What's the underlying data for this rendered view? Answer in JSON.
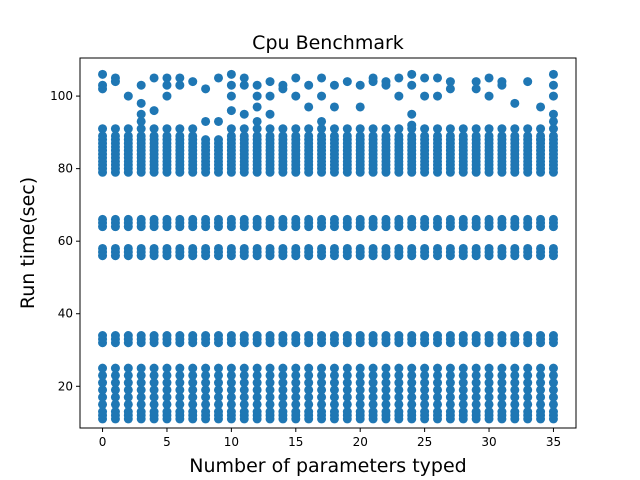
{
  "chart_data": {
    "type": "scatter",
    "title": "Cpu Benchmark",
    "xlabel": "Number of parameters typed",
    "ylabel": "Run time(sec)",
    "xlim": [
      -1.75,
      36.75
    ],
    "ylim": [
      8.5,
      110.5
    ],
    "xticks": [
      0,
      5,
      10,
      15,
      20,
      25,
      30,
      35
    ],
    "yticks": [
      20,
      40,
      60,
      80,
      100
    ],
    "grid": false,
    "color": "#1f77b4",
    "x": [
      0,
      1,
      2,
      3,
      4,
      5,
      6,
      7,
      8,
      9,
      10,
      11,
      12,
      13,
      14,
      15,
      16,
      17,
      18,
      19,
      20,
      21,
      22,
      23,
      24,
      25,
      26,
      27,
      28,
      29,
      30,
      31,
      32,
      33,
      34,
      35
    ],
    "common_levels": [
      11,
      12,
      13,
      15,
      17,
      19,
      21,
      23,
      25,
      32,
      33,
      34,
      56,
      57,
      58,
      64,
      65,
      66,
      79,
      80,
      81,
      82,
      83,
      84,
      85,
      86,
      87,
      88
    ],
    "extra_levels": [
      [
        91,
        89,
        103,
        106,
        102
      ],
      [
        91,
        104,
        89,
        105
      ],
      [
        100,
        89,
        91
      ],
      [
        103,
        98,
        95,
        89,
        91,
        93
      ],
      [
        96,
        89,
        91,
        105
      ],
      [
        100,
        103,
        105,
        89,
        91
      ],
      [
        103,
        105,
        91,
        89
      ],
      [
        89,
        91,
        104
      ],
      [
        93,
        102
      ],
      [
        93,
        105
      ],
      [
        96,
        106,
        103,
        100,
        89,
        91
      ],
      [
        105,
        95,
        103,
        89,
        91
      ],
      [
        97,
        100,
        93,
        89,
        91,
        103
      ],
      [
        104,
        100,
        95,
        91,
        89
      ],
      [
        102,
        103,
        89,
        91
      ],
      [
        105,
        100,
        89,
        91
      ],
      [
        97,
        103,
        89,
        91
      ],
      [
        100,
        105,
        89,
        91,
        93
      ],
      [
        103,
        97,
        89,
        91
      ],
      [
        89,
        91,
        104
      ],
      [
        103,
        97,
        89,
        91
      ],
      [
        104,
        105,
        89,
        91
      ],
      [
        103,
        104,
        89,
        91
      ],
      [
        105,
        100,
        89,
        91
      ],
      [
        106,
        103,
        95,
        92,
        89,
        91
      ],
      [
        105,
        100,
        89,
        91
      ],
      [
        105,
        100,
        89,
        91
      ],
      [
        104,
        102,
        89,
        91
      ],
      [
        91,
        89
      ],
      [
        104,
        102,
        89,
        91
      ],
      [
        105,
        100,
        89,
        91
      ],
      [
        104,
        103,
        89,
        91
      ],
      [
        98,
        89,
        91
      ],
      [
        104,
        89,
        91
      ],
      [
        97,
        91,
        89,
        88
      ],
      [
        106,
        103,
        100,
        95,
        93,
        91,
        89
      ]
    ],
    "extra_low_levels": [
      [
        9
      ],
      [],
      [],
      [],
      [],
      [],
      [],
      [],
      [],
      [],
      [],
      [],
      [],
      [],
      [],
      [],
      [],
      [],
      [],
      [],
      [],
      [],
      [],
      [],
      [],
      [],
      [],
      [],
      [],
      [],
      [],
      [],
      [],
      [],
      [],
      []
    ]
  }
}
